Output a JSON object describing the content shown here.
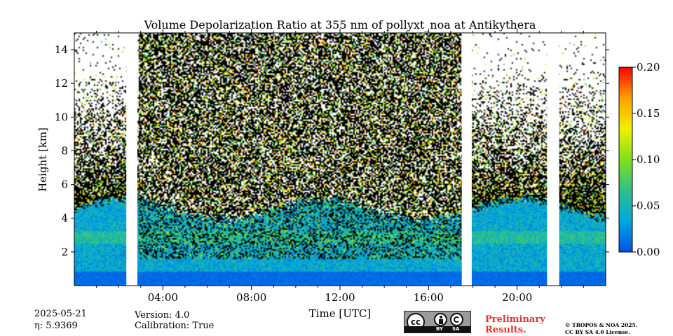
{
  "chart_data": {
    "type": "heatmap",
    "title": "Volume Depolarization Ratio at 355 nm of pollyxt_noa at Antikythera",
    "xlabel": "Time [UTC]",
    "ylabel": "Height [km]",
    "x_range_hours": [
      0,
      24
    ],
    "y_range_km": [
      0,
      15
    ],
    "x_ticks": [
      {
        "value": 4,
        "label": "04:00"
      },
      {
        "value": 8,
        "label": "08:00"
      },
      {
        "value": 12,
        "label": "12:00"
      },
      {
        "value": 16,
        "label": "16:00"
      },
      {
        "value": 20,
        "label": "20:00"
      }
    ],
    "y_ticks": [
      {
        "value": 2,
        "label": "2"
      },
      {
        "value": 4,
        "label": "4"
      },
      {
        "value": 6,
        "label": "6"
      },
      {
        "value": 8,
        "label": "8"
      },
      {
        "value": 10,
        "label": "10"
      },
      {
        "value": 12,
        "label": "12"
      },
      {
        "value": 14,
        "label": "14"
      }
    ],
    "colorbar": {
      "range": [
        0.0,
        0.2
      ],
      "ticks": [
        {
          "value": 0.0,
          "label": "0.00"
        },
        {
          "value": 0.05,
          "label": "0.05"
        },
        {
          "value": 0.1,
          "label": "0.10"
        },
        {
          "value": 0.15,
          "label": "0.15"
        },
        {
          "value": 0.2,
          "label": "0.20"
        }
      ],
      "colors": [
        "#0050e6",
        "#00a8e0",
        "#2ec08a",
        "#80e01a",
        "#f0f000",
        "#ffa000",
        "#ff0000"
      ]
    },
    "no_data_gaps_hours": [
      [
        2.35,
        2.85
      ],
      [
        17.5,
        17.95
      ],
      [
        21.35,
        21.9
      ]
    ],
    "boundary_layer_top_km": 4.5,
    "noise_floor_km": 6.0
  },
  "footer": {
    "date": "2025-05-21",
    "eta_label": "η: 5.9369",
    "version": "Version: 4.0",
    "calibration": "Calibration: True",
    "preliminary": [
      "Preliminary",
      "Results."
    ],
    "copyright": [
      "© TROPOS & NOA 2025.",
      "CC BY SA 4.0 License."
    ],
    "license_badge": {
      "cc": "cc",
      "by": "BY",
      "sa": "SA"
    }
  }
}
